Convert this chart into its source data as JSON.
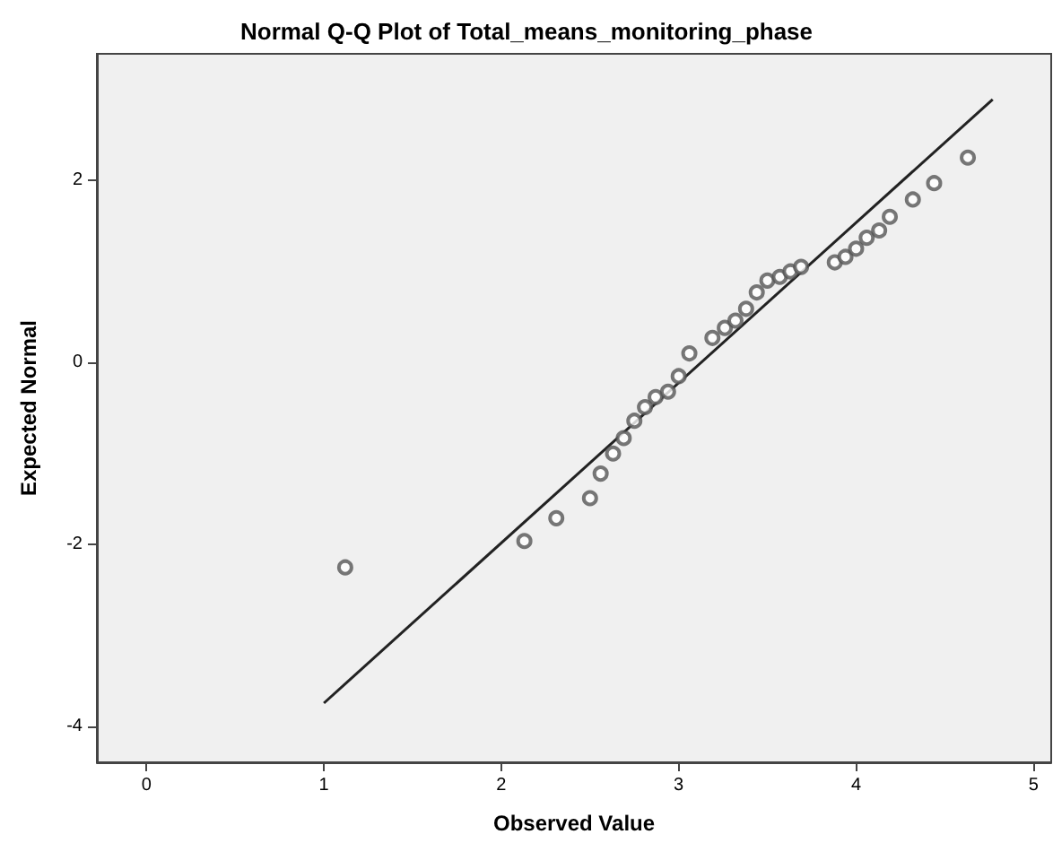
{
  "chart_data": {
    "type": "scatter",
    "title": "Normal Q-Q Plot of Total_means_monitoring_phase",
    "xlabel": "Observed Value",
    "ylabel": "Expected Normal",
    "xlim": [
      -0.28,
      5.1
    ],
    "ylim": [
      -4.39,
      3.39
    ],
    "xticks": [
      0,
      1,
      2,
      3,
      4,
      5
    ],
    "yticks": [
      -4,
      -2,
      0,
      2
    ],
    "grid": false,
    "marker": "circle",
    "series": [
      {
        "color": "#555555",
        "x": [
          1.12,
          2.13,
          2.31,
          2.5,
          2.56,
          2.63,
          2.69,
          2.75,
          2.81,
          2.87,
          2.94,
          3.0,
          3.06,
          3.19,
          3.26,
          3.32,
          3.38,
          3.44,
          3.5,
          3.57,
          3.63,
          3.69,
          3.88,
          3.94,
          4.0,
          4.06,
          4.13,
          4.19,
          4.32,
          4.44,
          4.63
        ],
        "values": [
          -2.25,
          -1.96,
          -1.71,
          -1.49,
          -1.22,
          -1.0,
          -0.83,
          -0.64,
          -0.49,
          -0.38,
          -0.32,
          -0.15,
          0.1,
          0.27,
          0.38,
          0.46,
          0.59,
          0.77,
          0.9,
          0.94,
          1.0,
          1.05,
          1.1,
          1.16,
          1.25,
          1.37,
          1.45,
          1.6,
          1.79,
          1.97,
          2.25
        ]
      },
      {
        "type": "line",
        "color": "#222222",
        "marker": "none",
        "line_style": "solid",
        "x": [
          1.0,
          4.77
        ],
        "values": [
          -3.74,
          2.89
        ]
      }
    ]
  }
}
